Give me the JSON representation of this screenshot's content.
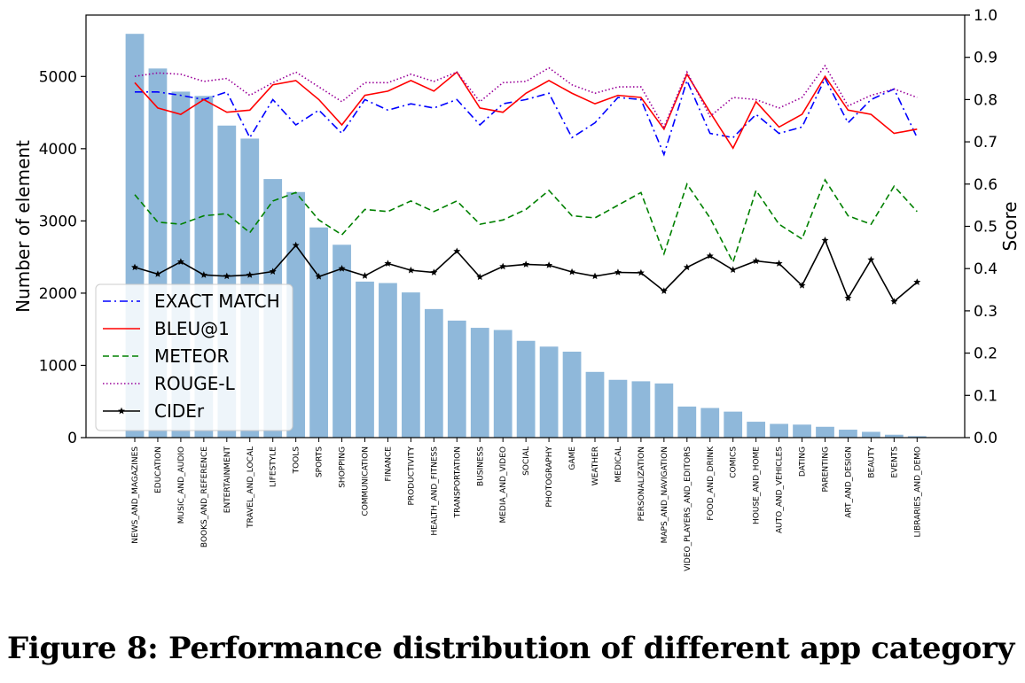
{
  "caption": "Figure 8: Performance distribution of different app category",
  "chart_data": {
    "type": "bar",
    "ylabel": "Number of element",
    "y2label": "Score",
    "ylim": [
      0,
      5850
    ],
    "y2lim": [
      0.0,
      1.0
    ],
    "yticks": [
      0,
      1000,
      2000,
      3000,
      4000,
      5000
    ],
    "y2ticks": [
      "0.0",
      "0.1",
      "0.2",
      "0.3",
      "0.4",
      "0.5",
      "0.6",
      "0.7",
      "0.8",
      "0.9",
      "1.0"
    ],
    "bar_color": "#8fb8da",
    "categories": [
      "NEWS_AND_MAGAZINES",
      "EDUCATION",
      "MUSIC_AND_AUDIO",
      "BOOKS_AND_REFERENCE",
      "ENTERTAINMENT",
      "TRAVEL_AND_LOCAL",
      "LIFESTYLE",
      "TOOLS",
      "SPORTS",
      "SHOPPING",
      "COMMUNICATION",
      "FINANCE",
      "PRODUCTIVITY",
      "HEALTH_AND_FITNESS",
      "TRANSPORTATION",
      "BUSINESS",
      "MEDIA_AND_VIDEO",
      "SOCIAL",
      "PHOTOGRAPHY",
      "GAME",
      "WEATHER",
      "MEDICAL",
      "PERSONALIZATION",
      "MAPS_AND_NAVIGATION",
      "VIDEO_PLAYERS_AND_EDITORS",
      "FOOD_AND_DRINK",
      "COMICS",
      "HOUSE_AND_HOME",
      "AUTO_AND_VEHICLES",
      "DATING",
      "PARENTING",
      "ART_AND_DESIGN",
      "BEAUTY",
      "EVENTS",
      "LIBRARIES_AND_DEMO"
    ],
    "values": [
      5590,
      5110,
      4790,
      4730,
      4320,
      4140,
      3580,
      3400,
      2910,
      2670,
      2160,
      2140,
      2010,
      1780,
      1620,
      1520,
      1490,
      1340,
      1260,
      1190,
      910,
      800,
      780,
      750,
      430,
      410,
      360,
      220,
      190,
      180,
      150,
      110,
      80,
      40,
      20
    ],
    "series": [
      {
        "name": "EXACT MATCH",
        "color": "#0000ff",
        "style": "dashdot",
        "marker": "none",
        "values": [
          0.818,
          0.818,
          0.81,
          0.8,
          0.818,
          0.71,
          0.8,
          0.74,
          0.775,
          0.72,
          0.8,
          0.775,
          0.79,
          0.78,
          0.8,
          0.74,
          0.79,
          0.8,
          0.815,
          0.71,
          0.745,
          0.805,
          0.8,
          0.67,
          0.845,
          0.72,
          0.71,
          0.765,
          0.72,
          0.735,
          0.85,
          0.745,
          0.8,
          0.825,
          0.71
        ]
      },
      {
        "name": "BLEU@1",
        "color": "#ff0000",
        "style": "solid",
        "marker": "none",
        "values": [
          0.84,
          0.78,
          0.765,
          0.8,
          0.77,
          0.775,
          0.835,
          0.845,
          0.8,
          0.74,
          0.81,
          0.82,
          0.845,
          0.82,
          0.865,
          0.78,
          0.77,
          0.815,
          0.845,
          0.815,
          0.79,
          0.81,
          0.805,
          0.73,
          0.86,
          0.77,
          0.685,
          0.795,
          0.735,
          0.765,
          0.855,
          0.775,
          0.765,
          0.72,
          0.73
        ]
      },
      {
        "name": "METEOR",
        "color": "#008000",
        "style": "dashed",
        "marker": "none",
        "values": [
          0.575,
          0.51,
          0.505,
          0.525,
          0.53,
          0.485,
          0.56,
          0.58,
          0.515,
          0.48,
          0.54,
          0.535,
          0.56,
          0.535,
          0.56,
          0.505,
          0.515,
          0.54,
          0.585,
          0.525,
          0.52,
          0.55,
          0.58,
          0.435,
          0.6,
          0.52,
          0.415,
          0.585,
          0.505,
          0.47,
          0.61,
          0.525,
          0.505,
          0.595,
          0.535
        ]
      },
      {
        "name": "ROUGE-L",
        "color": "#990099",
        "style": "dotted",
        "marker": "none",
        "values": [
          0.855,
          0.863,
          0.86,
          0.843,
          0.85,
          0.81,
          0.84,
          0.865,
          0.83,
          0.795,
          0.84,
          0.84,
          0.86,
          0.843,
          0.865,
          0.795,
          0.84,
          0.843,
          0.875,
          0.835,
          0.815,
          0.83,
          0.83,
          0.735,
          0.865,
          0.76,
          0.805,
          0.8,
          0.78,
          0.805,
          0.88,
          0.785,
          0.81,
          0.825,
          0.805
        ]
      },
      {
        "name": "CIDEr",
        "color": "#000000",
        "style": "solid",
        "marker": "star",
        "values": [
          0.403,
          0.387,
          0.416,
          0.385,
          0.382,
          0.385,
          0.393,
          0.455,
          0.381,
          0.4,
          0.383,
          0.412,
          0.396,
          0.391,
          0.441,
          0.38,
          0.405,
          0.41,
          0.408,
          0.392,
          0.382,
          0.391,
          0.39,
          0.347,
          0.403,
          0.43,
          0.397,
          0.418,
          0.412,
          0.36,
          0.467,
          0.33,
          0.421,
          0.322,
          0.368
        ]
      }
    ]
  }
}
